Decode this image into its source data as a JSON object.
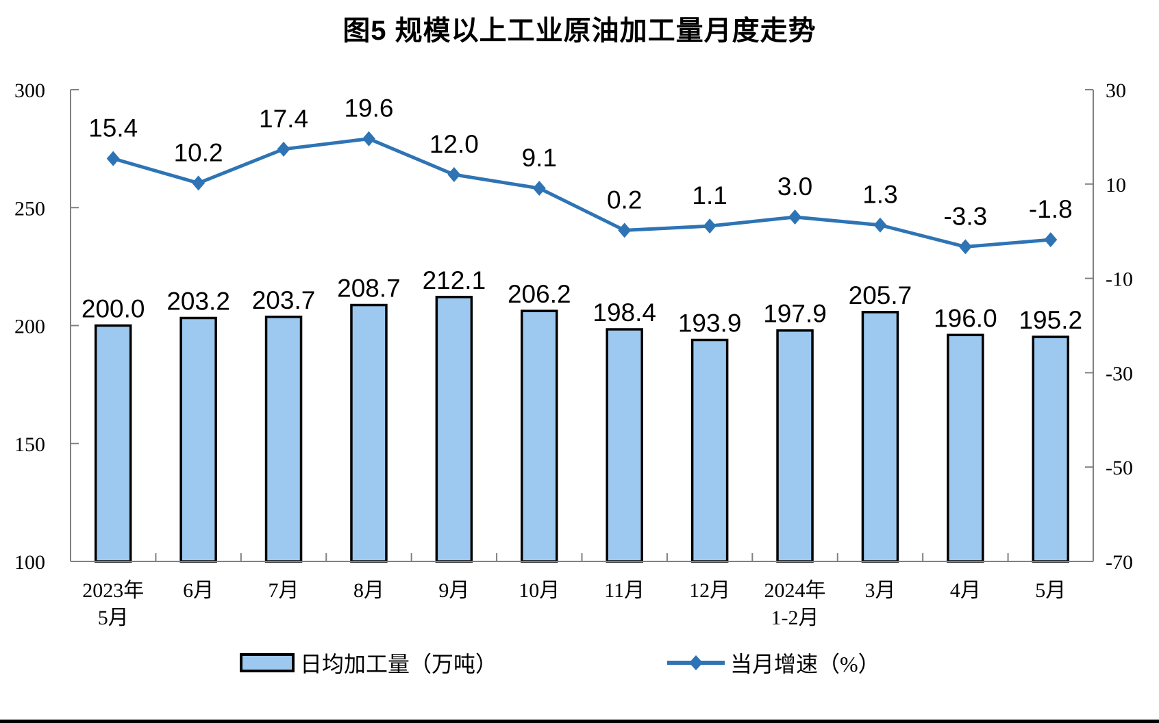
{
  "title": "图5  规模以上工业原油加工量月度走势",
  "chart_data": {
    "type": "bar",
    "combo": "bar+line dual-axis",
    "title": "图5  规模以上工业原油加工量月度走势",
    "categories": [
      "2023年5月",
      "6月",
      "7月",
      "8月",
      "9月",
      "10月",
      "11月",
      "12月",
      "2024年1-2月",
      "3月",
      "4月",
      "5月"
    ],
    "category_lines": [
      [
        "2023年",
        "5月"
      ],
      [
        "6月"
      ],
      [
        "7月"
      ],
      [
        "8月"
      ],
      [
        "9月"
      ],
      [
        "10月"
      ],
      [
        "11月"
      ],
      [
        "12月"
      ],
      [
        "2024年",
        "1-2月"
      ],
      [
        "3月"
      ],
      [
        "4月"
      ],
      [
        "5月"
      ]
    ],
    "series": [
      {
        "name": "日均加工量（万吨）",
        "type": "bar",
        "axis": "left",
        "values": [
          200.0,
          203.2,
          203.7,
          208.7,
          212.1,
          206.2,
          198.4,
          193.9,
          197.9,
          205.7,
          196.0,
          195.2
        ]
      },
      {
        "name": "当月增速（%）",
        "type": "line",
        "axis": "right",
        "values": [
          15.4,
          10.2,
          17.4,
          19.6,
          12.0,
          9.1,
          0.2,
          1.1,
          3.0,
          1.3,
          -3.3,
          -1.8
        ]
      }
    ],
    "left_axis": {
      "min": 100,
      "max": 300,
      "step": 50,
      "ticks": [
        100,
        150,
        200,
        250,
        300
      ]
    },
    "right_axis": {
      "min": -70,
      "max": 30,
      "step": 20,
      "ticks": [
        -70,
        -50,
        -30,
        -10,
        10,
        30
      ]
    },
    "grid": "off",
    "legend_position": "bottom",
    "colors": {
      "bar_fill": "#9DC9F0",
      "bar_border": "#000000",
      "line": "#2E74B5",
      "axis": "#808080",
      "text": "#000000"
    }
  },
  "legend": {
    "bar_label": "日均加工量（万吨）",
    "line_label": "当月增速（%）"
  }
}
